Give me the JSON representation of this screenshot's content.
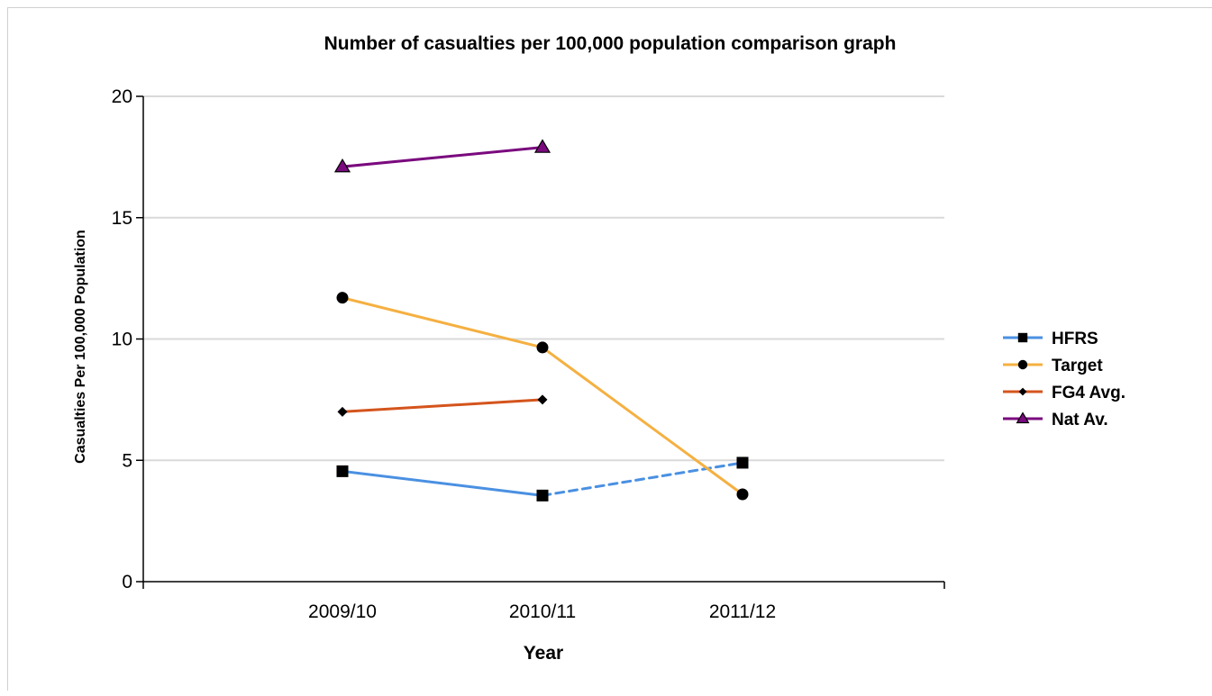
{
  "chart_data": {
    "type": "line",
    "title": "Number of casualties per 100,000 population comparison graph",
    "xlabel": "Year",
    "ylabel": "Casualties Per 100,000 Population",
    "categories": [
      "2009/10",
      "2010/11",
      "2011/12"
    ],
    "ylim": [
      0,
      20
    ],
    "yticks": [
      0,
      5,
      10,
      15,
      20
    ],
    "grid": true,
    "legend_position": "right",
    "series": [
      {
        "name": "HFRS",
        "color": "#4a90e2",
        "marker": "square",
        "values": [
          4.55,
          3.55,
          4.9
        ],
        "dashed_from_index": 1
      },
      {
        "name": "Target",
        "color": "#f5b041",
        "marker": "circle",
        "values": [
          11.7,
          9.65,
          3.6
        ]
      },
      {
        "name": "FG4 Avg.",
        "color": "#d4541c",
        "marker": "diamond",
        "values": [
          7.0,
          7.5,
          null
        ]
      },
      {
        "name": "Nat Av.",
        "color": "#7a0a7e",
        "marker": "triangle",
        "values": [
          17.1,
          17.9,
          null
        ]
      }
    ]
  }
}
